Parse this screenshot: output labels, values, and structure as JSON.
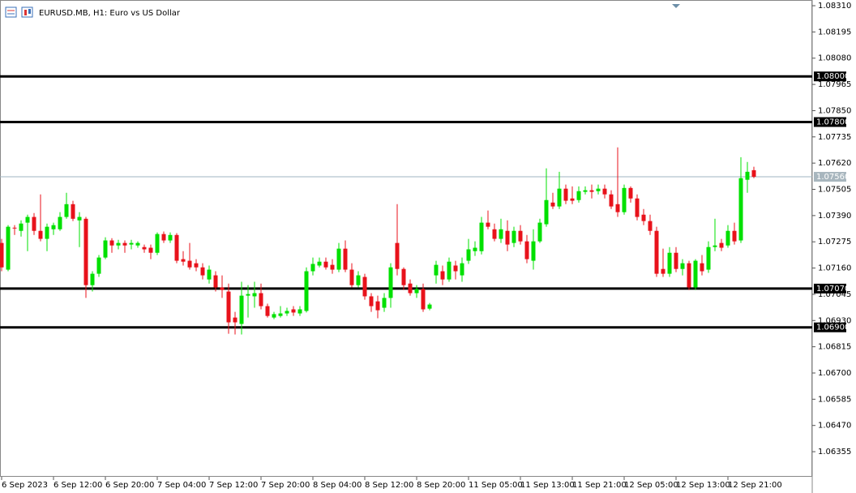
{
  "chart_data": {
    "type": "candlestick",
    "title": "EURUSD.MB, H1:  Euro vs US Dollar",
    "categories": [
      "6 Sep 2023",
      null,
      null,
      null,
      null,
      null,
      null,
      null,
      "6 Sep 12:00",
      null,
      null,
      null,
      null,
      null,
      null,
      null,
      "6 Sep 20:00",
      null,
      null,
      null,
      null,
      null,
      null,
      null,
      "7 Sep 04:00",
      null,
      null,
      null,
      null,
      null,
      null,
      null,
      "7 Sep 12:00",
      null,
      null,
      null,
      null,
      null,
      null,
      null,
      "7 Sep 20:00",
      null,
      null,
      null,
      null,
      null,
      null,
      null,
      "8 Sep 04:00",
      null,
      null,
      null,
      null,
      null,
      null,
      null,
      "8 Sep 12:00",
      null,
      null,
      null,
      null,
      null,
      null,
      null,
      "8 Sep 20:00",
      null,
      null,
      null,
      null,
      null,
      null,
      null,
      "11 Sep 05:00",
      null,
      null,
      null,
      null,
      null,
      null,
      null,
      "11 Sep 13:00",
      null,
      null,
      null,
      null,
      null,
      null,
      null,
      "11 Sep 21:00",
      null,
      null,
      null,
      null,
      null,
      null,
      null,
      "12 Sep 05:00",
      null,
      null,
      null,
      null,
      null,
      null,
      null,
      "12 Sep 13:00",
      null,
      null,
      null,
      null,
      null,
      null,
      null,
      "12 Sep 21:00",
      null,
      null,
      null,
      null
    ],
    "open": [
      1.0727,
      1.07153,
      1.07337,
      1.07323,
      1.07359,
      1.07384,
      1.07323,
      1.07288,
      1.0733,
      1.0733,
      1.07384,
      1.0744,
      1.07369,
      1.07376,
      1.07085,
      1.07135,
      1.07206,
      1.07281,
      1.07259,
      1.0727,
      1.07263,
      1.07259,
      1.07252,
      1.07249,
      1.07227,
      1.07309,
      1.07281,
      1.07305,
      1.07199,
      1.07192,
      1.07181,
      1.07163,
      1.0711,
      1.07128,
      1.07075,
      1.07057,
      1.06943,
      1.06915,
      1.07039,
      1.07036,
      1.0705,
      1.06993,
      1.06943,
      1.0695,
      1.06961,
      1.06979,
      1.06961,
      1.06972,
      1.07146,
      1.07171,
      1.07188,
      1.07174,
      1.07153,
      1.07245,
      1.07153,
      1.07085,
      1.07121,
      1.07036,
      1.07014,
      1.06986,
      1.07029,
      1.0727,
      1.07156,
      1.07092,
      1.0705,
      1.07068,
      1.06982,
      1.07128,
      1.07146,
      1.0711,
      1.07171,
      1.07128,
      1.07192,
      1.07234,
      1.07234,
      1.07359,
      1.0733,
      1.07288,
      1.07323,
      1.0727,
      1.07323,
      1.07277,
      1.07192,
      1.07277,
      1.07352,
      1.07447,
      1.0743,
      1.07508,
      1.07465,
      1.07458,
      1.07494,
      1.07501,
      1.07497,
      1.07508,
      1.07483,
      1.0744,
      1.07405,
      1.07511,
      1.07465,
      1.07394,
      1.07366,
      1.07323,
      1.07156,
      1.07135,
      1.07227,
      1.07156,
      1.07181,
      1.07075,
      1.07181,
      1.07153,
      1.07252,
      1.0727,
      1.07259,
      1.07323,
      1.07281,
      1.07547,
      1.07589
    ],
    "high": [
      1.07288,
      1.07348,
      1.07348,
      1.07369,
      1.07394,
      1.07401,
      1.07483,
      1.07355,
      1.07359,
      1.07405,
      1.0749,
      1.07455,
      1.07405,
      1.07384,
      1.07146,
      1.07217,
      1.07295,
      1.07291,
      1.07284,
      1.07281,
      1.07284,
      1.07277,
      1.07263,
      1.07263,
      1.07316,
      1.0732,
      1.07316,
      1.07313,
      1.07234,
      1.0727,
      1.07199,
      1.07181,
      1.07171,
      1.07146,
      1.07128,
      1.07092,
      1.06968,
      1.071,
      1.07085,
      1.071,
      1.07092,
      1.07004,
      1.06968,
      1.06993,
      1.06986,
      1.06993,
      1.06993,
      1.07163,
      1.07206,
      1.07206,
      1.07206,
      1.07199,
      1.0727,
      1.07281,
      1.07181,
      1.07146,
      1.07135,
      1.0705,
      1.07039,
      1.0705,
      1.07181,
      1.0744,
      1.07163,
      1.0711,
      1.07085,
      1.07092,
      1.07007,
      1.07192,
      1.07171,
      1.07206,
      1.07192,
      1.07206,
      1.07288,
      1.07277,
      1.07384,
      1.07412,
      1.07355,
      1.07376,
      1.07369,
      1.07341,
      1.07348,
      1.07305,
      1.0733,
      1.07376,
      1.07597,
      1.0749,
      1.07582,
      1.07526,
      1.07518,
      1.07518,
      1.07518,
      1.07526,
      1.07526,
      1.07526,
      1.07501,
      1.07689,
      1.07526,
      1.07518,
      1.07483,
      1.07419,
      1.07394,
      1.07341,
      1.07245,
      1.07252,
      1.07252,
      1.07199,
      1.07192,
      1.07199,
      1.07217,
      1.07277,
      1.07376,
      1.07288,
      1.07348,
      1.07359,
      1.07646,
      1.07625,
      1.07604
    ],
    "low": [
      1.07146,
      1.07146,
      1.07305,
      1.07298,
      1.07234,
      1.07305,
      1.07277,
      1.07234,
      1.07305,
      1.07323,
      1.07376,
      1.07366,
      1.07252,
      1.07029,
      1.07057,
      1.07121,
      1.07199,
      1.07227,
      1.07242,
      1.07227,
      1.07242,
      1.07249,
      1.07227,
      1.07199,
      1.07217,
      1.0727,
      1.0727,
      1.07181,
      1.07171,
      1.07153,
      1.07146,
      1.0711,
      1.07092,
      1.07057,
      1.07029,
      1.06872,
      1.06869,
      1.06869,
      1.06943,
      1.06986,
      1.06979,
      1.06943,
      1.06936,
      1.06943,
      1.0695,
      1.0695,
      1.0695,
      1.06965,
      1.07128,
      1.07163,
      1.07153,
      1.07135,
      1.07142,
      1.07142,
      1.07075,
      1.07075,
      1.07021,
      1.06968,
      1.0694,
      1.06968,
      1.06986,
      1.07128,
      1.07064,
      1.07039,
      1.07029,
      1.06968,
      1.06975,
      1.07092,
      1.07085,
      1.071,
      1.0711,
      1.071,
      1.07178,
      1.07213,
      1.0722,
      1.0733,
      1.07277,
      1.0727,
      1.07234,
      1.07252,
      1.07263,
      1.07181,
      1.07153,
      1.0727,
      1.07341,
      1.07419,
      1.07419,
      1.0744,
      1.0744,
      1.07447,
      1.07483,
      1.07465,
      1.07483,
      1.07465,
      1.07419,
      1.07384,
      1.07394,
      1.07447,
      1.07369,
      1.07348,
      1.07305,
      1.07121,
      1.07121,
      1.07121,
      1.07142,
      1.07128,
      1.07064,
      1.07064,
      1.07128,
      1.07139,
      1.07234,
      1.07234,
      1.07249,
      1.07263,
      1.0727,
      1.0749,
      1.07554
    ],
    "close": [
      1.07163,
      1.07341,
      1.07334,
      1.07355,
      1.07384,
      1.07323,
      1.07288,
      1.07341,
      1.07348,
      1.07384,
      1.0744,
      1.07376,
      1.07384,
      1.07085,
      1.07135,
      1.07206,
      1.07281,
      1.07259,
      1.0727,
      1.07259,
      1.0727,
      1.0727,
      1.07242,
      1.07227,
      1.07309,
      1.07281,
      1.07305,
      1.07192,
      1.07188,
      1.07163,
      1.07163,
      1.07128,
      1.07153,
      1.07075,
      1.07064,
      1.06922,
      1.06922,
      1.07039,
      1.07046,
      1.0705,
      1.06993,
      1.0695,
      1.06958,
      1.06961,
      1.06972,
      1.06965,
      1.06979,
      1.07146,
      1.07178,
      1.07188,
      1.07163,
      1.07153,
      1.07245,
      1.07153,
      1.07085,
      1.07128,
      1.07036,
      1.06993,
      1.06975,
      1.07029,
      1.07163,
      1.07156,
      1.07085,
      1.0705,
      1.07068,
      1.06979,
      1.07,
      1.07174,
      1.0711,
      1.07188,
      1.07146,
      1.07181,
      1.07242,
      1.07249,
      1.07359,
      1.07341,
      1.07288,
      1.0733,
      1.07263,
      1.07323,
      1.07277,
      1.07199,
      1.07277,
      1.07359,
      1.07458,
      1.0743,
      1.07508,
      1.07455,
      1.07455,
      1.07497,
      1.07501,
      1.07494,
      1.07508,
      1.07483,
      1.0743,
      1.07405,
      1.07511,
      1.07465,
      1.07384,
      1.07366,
      1.07323,
      1.07135,
      1.07135,
      1.07227,
      1.07156,
      1.07181,
      1.07075,
      1.07192,
      1.07146,
      1.07252,
      1.07259,
      1.07249,
      1.07323,
      1.07277,
      1.07554,
      1.07582,
      1.0756
    ],
    "up_color": "#00e000",
    "down_color": "#e8121b",
    "ylim": [
      1.06245,
      1.08335
    ],
    "yticks": [
      {
        "value": 1.0831,
        "label": "1.08310"
      },
      {
        "value": 1.08195,
        "label": "1.08195"
      },
      {
        "value": 1.0808,
        "label": "1.08080"
      },
      {
        "value": 1.07965,
        "label": "1.07965"
      },
      {
        "value": 1.0785,
        "label": "1.07850"
      },
      {
        "value": 1.07735,
        "label": "1.07735"
      },
      {
        "value": 1.0762,
        "label": "1.07620"
      },
      {
        "value": 1.07505,
        "label": "1.07505"
      },
      {
        "value": 1.0739,
        "label": "1.07390"
      },
      {
        "value": 1.07275,
        "label": "1.07275"
      },
      {
        "value": 1.0716,
        "label": "1.07160"
      },
      {
        "value": 1.07045,
        "label": "1.07045"
      },
      {
        "value": 1.0693,
        "label": "1.06930"
      },
      {
        "value": 1.06815,
        "label": "1.06815"
      },
      {
        "value": 1.067,
        "label": "1.06700"
      },
      {
        "value": 1.06585,
        "label": "1.06585"
      },
      {
        "value": 1.0647,
        "label": "1.06470"
      },
      {
        "value": 1.06355,
        "label": "1.06355"
      }
    ],
    "levels": [
      {
        "value": 1.08,
        "label": "1.08000"
      },
      {
        "value": 1.078,
        "label": "1.07800"
      },
      {
        "value": 1.0707,
        "label": "1.07070"
      },
      {
        "value": 1.069,
        "label": "1.06900"
      }
    ],
    "current_price": {
      "value": 1.0756,
      "label": "1.07560"
    },
    "grid": false
  }
}
